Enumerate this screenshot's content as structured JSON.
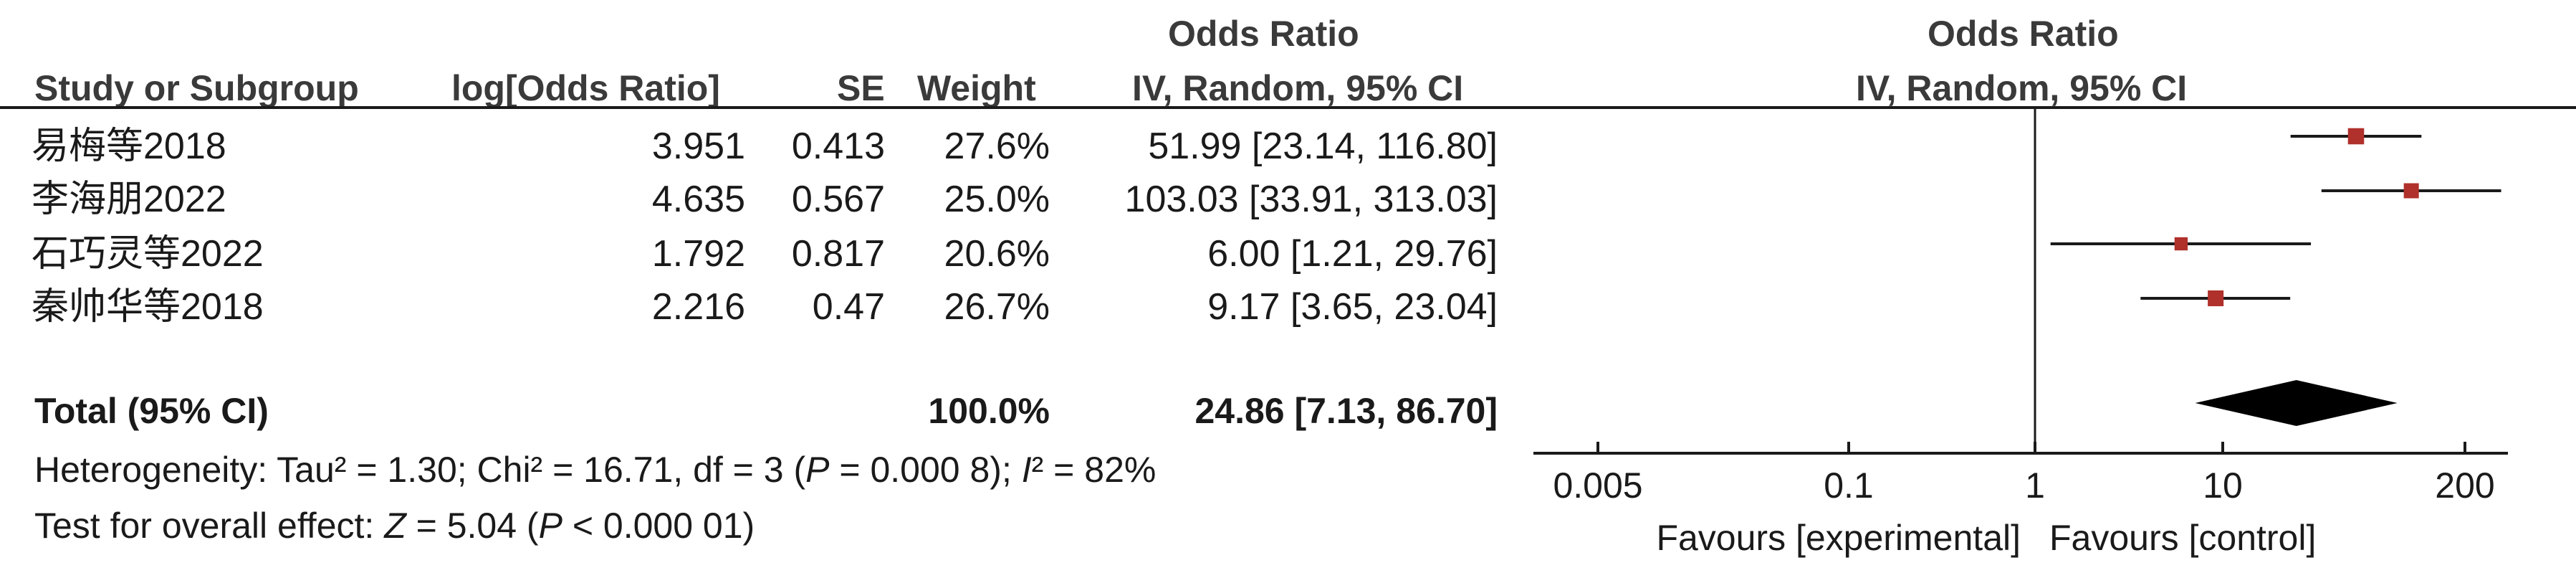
{
  "chart_data": {
    "type": "forest",
    "left_header": "Odds Ratio",
    "left_subheader": "IV, Random, 95% CI",
    "right_header": "Odds Ratio",
    "right_subheader": "IV, Random, 95% CI",
    "columns": {
      "study": "Study or Subgroup",
      "log_or": "log[Odds Ratio]",
      "se": "SE",
      "weight": "Weight"
    },
    "studies": [
      {
        "name": "易梅等2018",
        "log_or": "3.951",
        "se": "0.413",
        "weight": "27.6%",
        "ci_text": "51.99 [23.14, 116.80]",
        "or": 51.99,
        "lo": 23.14,
        "hi": 116.8
      },
      {
        "name": "李海朋2022",
        "log_or": "4.635",
        "se": "0.567",
        "weight": "25.0%",
        "ci_text": "103.03 [33.91, 313.03]",
        "or": 103.03,
        "lo": 33.91,
        "hi": 313.03
      },
      {
        "name": "石巧灵等2022",
        "log_or": "1.792",
        "se": "0.817",
        "weight": "20.6%",
        "ci_text": "6.00 [1.21, 29.76]",
        "or": 6.0,
        "lo": 1.21,
        "hi": 29.76
      },
      {
        "name": "秦帅华等2018",
        "log_or": "2.216",
        "se": "0.47",
        "weight": "26.7%",
        "ci_text": "9.17 [3.65, 23.04]",
        "or": 9.17,
        "lo": 3.65,
        "hi": 23.04
      }
    ],
    "total": {
      "label": "Total (95% CI)",
      "weight": "100.0%",
      "ci_text": "24.86 [7.13, 86.70]",
      "or": 24.86,
      "lo": 7.13,
      "hi": 86.7
    },
    "heterogeneity": {
      "prefix": "Heterogeneity: Tau² = 1.30; Chi² = 16.71, df = 3 (",
      "p_symbol": "P",
      "mid": " = 0.000 8); ",
      "i_symbol": "I",
      "suffix": "² = 82%"
    },
    "overall": {
      "prefix": "Test for overall effect: ",
      "z_symbol": "Z",
      "mid": " = 5.04 (",
      "p_symbol": "P",
      "suffix": " < 0.000 01)"
    },
    "axis": {
      "scale": "log",
      "ticks": [
        0.005,
        0.1,
        1,
        10,
        200
      ],
      "tick_labels": [
        "0.005",
        "0.1",
        "1",
        "10",
        "200"
      ],
      "range": [
        0.005,
        200
      ]
    },
    "favours_left": "Favours [experimental]",
    "favours_right": "Favours [control]",
    "marker_color": "#b0302b",
    "diamond_color": "#000000"
  }
}
